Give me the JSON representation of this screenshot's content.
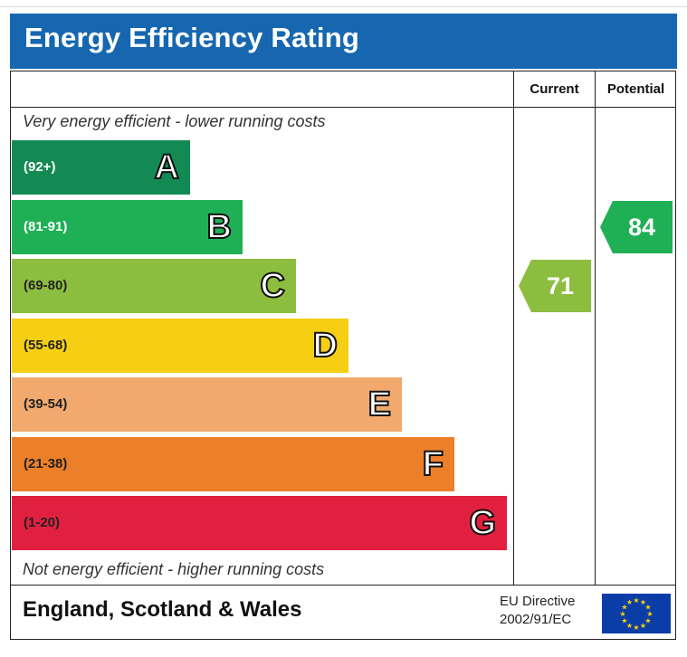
{
  "title": "Energy Efficiency Rating",
  "columns": {
    "current": "Current",
    "potential": "Potential"
  },
  "top_note": "Very energy efficient - lower running costs",
  "bottom_note": "Not energy efficient - higher running costs",
  "footer": {
    "region": "England, Scotland & Wales",
    "directive_line1": "EU Directive",
    "directive_line2": "2002/91/EC"
  },
  "chart_data": {
    "type": "bar",
    "categories": [
      "A",
      "B",
      "C",
      "D",
      "E",
      "F",
      "G"
    ],
    "ranges": [
      "(92+)",
      "(81-91)",
      "(69-80)",
      "(55-68)",
      "(39-54)",
      "(21-38)",
      "(1-20)"
    ],
    "colors": [
      "#138a54",
      "#1fb056",
      "#8dbd3e",
      "#f6cf14",
      "#f2a96e",
      "#ec7f29",
      "#e1203f"
    ],
    "range_text_colors": [
      "#ffffff",
      "#ffffff",
      "#222222",
      "#222222",
      "#222222",
      "#222222",
      "#222222"
    ],
    "current": {
      "value": 71,
      "band": "C",
      "color": "#8dbd3e"
    },
    "potential": {
      "value": 84,
      "band": "B",
      "color": "#1fb056"
    }
  }
}
